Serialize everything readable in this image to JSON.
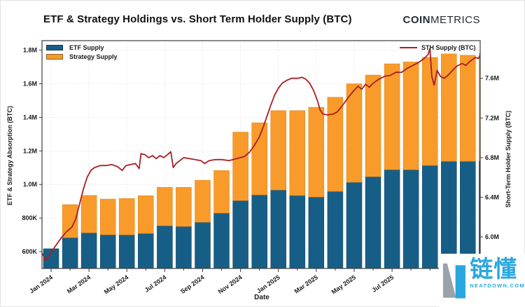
{
  "header": {
    "brand_bold": "COIN",
    "brand_light": "METRICS"
  },
  "watermark": {
    "cjk": "链懂",
    "domain": "NEATDOWN.COM"
  },
  "colors": {
    "etf": "#175E87",
    "etf_edge": "#0F4563",
    "strategy": "#F89B2B",
    "strategy_edge": "#DB8118",
    "sth_line": "#A91E22",
    "grid": "#D9D9D9",
    "frame": "#3C3C3C",
    "watermark_blue": "#2AA7DF",
    "watermark_gray": "#9AA3AA"
  },
  "chart_data": {
    "type": "bar",
    "subtype": "stacked bars (monthly) + line on secondary axis",
    "title": "ETF & Strategy Holdings vs. Short Term Holder Supply (BTC)",
    "x_axis": {
      "label": "Date",
      "tick_labels": [
        "Jan 2024",
        "Mar 2024",
        "May 2024",
        "Jul 2024",
        "Sep 2024",
        "Nov 2024",
        "Jan 2025",
        "Mar 2025",
        "May 2025",
        "Jul 2025"
      ],
      "tick_month_indices": [
        0,
        2,
        4,
        6,
        8,
        10,
        12,
        14,
        16,
        18
      ]
    },
    "left_axis": {
      "label": "ETF & Strategy Absorption (BTC)",
      "tick_labels": [
        "600K",
        "800K",
        "1.0M",
        "1.2M",
        "1.4M",
        "1.6M",
        "1.8M"
      ],
      "tick_values_k": [
        600,
        800,
        1000,
        1200,
        1400,
        1600,
        1800
      ],
      "range_k": [
        500,
        1857
      ]
    },
    "right_axis": {
      "label": "Short-Term Holder Supply (BTC)",
      "tick_labels": [
        "6.0M",
        "6.4M",
        "6.8M",
        "7.2M",
        "7.6M"
      ],
      "tick_values_m": [
        6.0,
        6.4,
        6.8,
        7.2,
        7.6
      ],
      "range_m": [
        5.68,
        7.98
      ]
    },
    "legend": [
      {
        "label": "ETF Supply",
        "color": "#175E87"
      },
      {
        "label": "Strategy Supply",
        "color": "#F89B2B"
      }
    ],
    "line_legend": {
      "label": "STH Supply (BTC)",
      "color": "#A91E22"
    },
    "grid": "dotted, horizontal at left-axis ticks and vertical at labeled date ticks",
    "bars": {
      "months": [
        "Jan 2024",
        "Feb 2024",
        "Mar 2024",
        "Apr 2024",
        "May 2024",
        "Jun 2024",
        "Jul 2024",
        "Aug 2024",
        "Sep 2024",
        "Oct 2024",
        "Nov 2024",
        "Dec 2024",
        "Jan 2025",
        "Feb 2025",
        "Mar 2025",
        "Apr 2025",
        "May 2025",
        "Jun 2025",
        "Jul 2025",
        "Aug 2025",
        "Sep 2025",
        "Oct 2025",
        "Nov 2025",
        "Dec 2025"
      ],
      "etf_k": [
        617,
        683,
        712,
        700,
        700,
        708,
        754,
        750,
        775,
        829,
        904,
        938,
        967,
        934,
        925,
        959,
        1013,
        1046,
        1088,
        1088,
        1113,
        1138,
        1138,
        1140
      ],
      "strategy_k": [
        0,
        197,
        223,
        213,
        217,
        225,
        229,
        233,
        250,
        254,
        408,
        430,
        473,
        506,
        535,
        561,
        587,
        606,
        631,
        642,
        644,
        640,
        632,
        640
      ],
      "total_k": [
        617,
        880,
        935,
        913,
        917,
        933,
        983,
        983,
        1025,
        1083,
        1312,
        1368,
        1440,
        1440,
        1460,
        1520,
        1600,
        1652,
        1719,
        1730,
        1757,
        1778,
        1770,
        1780
      ]
    },
    "sth_line": {
      "name": "STH Supply (BTC)",
      "units": "M BTC",
      "points_month_value_m": [
        [
          -0.45,
          5.83
        ],
        [
          -0.3,
          5.76
        ],
        [
          -0.1,
          5.81
        ],
        [
          0.2,
          5.9
        ],
        [
          0.5,
          5.98
        ],
        [
          0.8,
          6.05
        ],
        [
          1.1,
          6.1
        ],
        [
          1.3,
          6.18
        ],
        [
          1.5,
          6.33
        ],
        [
          1.7,
          6.48
        ],
        [
          1.9,
          6.6
        ],
        [
          2.1,
          6.67
        ],
        [
          2.3,
          6.7
        ],
        [
          2.6,
          6.72
        ],
        [
          2.9,
          6.72
        ],
        [
          3.2,
          6.73
        ],
        [
          3.5,
          6.71
        ],
        [
          3.75,
          6.67
        ],
        [
          3.95,
          6.72
        ],
        [
          4.2,
          6.73
        ],
        [
          4.45,
          6.74
        ],
        [
          4.65,
          6.69
        ],
        [
          4.75,
          6.84
        ],
        [
          4.95,
          6.83
        ],
        [
          5.15,
          6.8
        ],
        [
          5.35,
          6.82
        ],
        [
          5.55,
          6.79
        ],
        [
          5.75,
          6.82
        ],
        [
          5.95,
          6.8
        ],
        [
          6.15,
          6.83
        ],
        [
          6.32,
          6.86
        ],
        [
          6.45,
          6.7
        ],
        [
          6.6,
          6.74
        ],
        [
          6.8,
          6.77
        ],
        [
          7.0,
          6.8
        ],
        [
          7.3,
          6.79
        ],
        [
          7.6,
          6.78
        ],
        [
          7.9,
          6.77
        ],
        [
          8.1,
          6.74
        ],
        [
          8.35,
          6.77
        ],
        [
          8.65,
          6.78
        ],
        [
          9.0,
          6.78
        ],
        [
          9.4,
          6.77
        ],
        [
          9.8,
          6.79
        ],
        [
          10.2,
          6.81
        ],
        [
          10.5,
          6.86
        ],
        [
          10.75,
          6.93
        ],
        [
          11.0,
          7.01
        ],
        [
          11.2,
          7.11
        ],
        [
          11.4,
          7.22
        ],
        [
          11.6,
          7.33
        ],
        [
          11.8,
          7.43
        ],
        [
          12.0,
          7.5
        ],
        [
          12.2,
          7.55
        ],
        [
          12.45,
          7.58
        ],
        [
          12.7,
          7.6
        ],
        [
          13.0,
          7.6
        ],
        [
          13.25,
          7.61
        ],
        [
          13.45,
          7.59
        ],
        [
          13.65,
          7.55
        ],
        [
          13.85,
          7.48
        ],
        [
          14.05,
          7.38
        ],
        [
          14.2,
          7.28
        ],
        [
          14.35,
          7.24
        ],
        [
          14.6,
          7.23
        ],
        [
          14.9,
          7.24
        ],
        [
          15.1,
          7.26
        ],
        [
          15.4,
          7.33
        ],
        [
          15.7,
          7.41
        ],
        [
          16.0,
          7.48
        ],
        [
          16.2,
          7.52
        ],
        [
          16.4,
          7.49
        ],
        [
          16.6,
          7.54
        ],
        [
          16.8,
          7.51
        ],
        [
          17.0,
          7.55
        ],
        [
          17.3,
          7.59
        ],
        [
          17.6,
          7.62
        ],
        [
          17.9,
          7.63
        ],
        [
          18.2,
          7.66
        ],
        [
          18.5,
          7.66
        ],
        [
          18.8,
          7.7
        ],
        [
          19.1,
          7.73
        ],
        [
          19.4,
          7.76
        ],
        [
          19.7,
          7.8
        ],
        [
          19.9,
          7.84
        ],
        [
          20.0,
          7.9
        ],
        [
          20.1,
          7.62
        ],
        [
          20.22,
          7.53
        ],
        [
          20.38,
          7.68
        ],
        [
          20.55,
          7.62
        ],
        [
          20.75,
          7.6
        ],
        [
          20.95,
          7.63
        ],
        [
          21.15,
          7.67
        ],
        [
          21.4,
          7.72
        ],
        [
          21.7,
          7.75
        ],
        [
          21.9,
          7.73
        ],
        [
          22.1,
          7.77
        ],
        [
          22.4,
          7.81
        ],
        [
          22.55,
          7.8
        ],
        [
          22.7,
          7.84
        ]
      ]
    }
  }
}
